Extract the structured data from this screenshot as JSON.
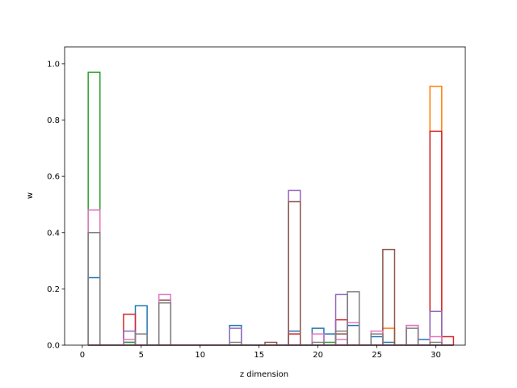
{
  "chart_data": {
    "type": "bar",
    "style": "step-outline histogram (unfilled bars)",
    "xlabel": "z dimension",
    "ylabel": "w",
    "xlim": [
      -1.5,
      32.5
    ],
    "ylim": [
      0,
      1.06
    ],
    "xticks": [
      0,
      5,
      10,
      15,
      20,
      25,
      30
    ],
    "yticks": [
      0.0,
      0.2,
      0.4,
      0.6,
      0.8,
      1.0
    ],
    "bin_width": 1,
    "legend": "none",
    "grid": false,
    "series": [
      {
        "color": "#1f77b4",
        "bars": [
          {
            "x": 1,
            "y": 0.24
          },
          {
            "x": 4,
            "y": 0.01
          },
          {
            "x": 5,
            "y": 0.14
          },
          {
            "x": 13,
            "y": 0.07
          },
          {
            "x": 18,
            "y": 0.05
          },
          {
            "x": 20,
            "y": 0.06
          },
          {
            "x": 21,
            "y": 0.04
          },
          {
            "x": 23,
            "y": 0.07
          },
          {
            "x": 25,
            "y": 0.03
          },
          {
            "x": 26,
            "y": 0.01
          },
          {
            "x": 29,
            "y": 0.02
          }
        ]
      },
      {
        "color": "#ff7f0e",
        "bars": [
          {
            "x": 26,
            "y": 0.06
          },
          {
            "x": 30,
            "y": 0.92
          }
        ]
      },
      {
        "color": "#2ca02c",
        "bars": [
          {
            "x": 1,
            "y": 0.97
          },
          {
            "x": 4,
            "y": 0.01
          },
          {
            "x": 21,
            "y": 0.01
          }
        ]
      },
      {
        "color": "#d62728",
        "bars": [
          {
            "x": 4,
            "y": 0.11
          },
          {
            "x": 18,
            "y": 0.04
          },
          {
            "x": 22,
            "y": 0.09
          },
          {
            "x": 30,
            "y": 0.76
          },
          {
            "x": 31,
            "y": 0.03
          }
        ]
      },
      {
        "color": "#9467bd",
        "bars": [
          {
            "x": 4,
            "y": 0.05
          },
          {
            "x": 13,
            "y": 0.06
          },
          {
            "x": 18,
            "y": 0.55
          },
          {
            "x": 22,
            "y": 0.18
          },
          {
            "x": 28,
            "y": 0.07
          },
          {
            "x": 30,
            "y": 0.12
          }
        ]
      },
      {
        "color": "#8c564b",
        "bars": [
          {
            "x": 7,
            "y": 0.16
          },
          {
            "x": 16,
            "y": 0.01
          },
          {
            "x": 18,
            "y": 0.51
          },
          {
            "x": 22,
            "y": 0.04
          },
          {
            "x": 26,
            "y": 0.34
          }
        ]
      },
      {
        "color": "#e377c2",
        "bars": [
          {
            "x": 1,
            "y": 0.48
          },
          {
            "x": 4,
            "y": 0.02
          },
          {
            "x": 7,
            "y": 0.18
          },
          {
            "x": 20,
            "y": 0.04
          },
          {
            "x": 22,
            "y": 0.02
          },
          {
            "x": 23,
            "y": 0.08
          },
          {
            "x": 25,
            "y": 0.05
          },
          {
            "x": 28,
            "y": 0.07
          },
          {
            "x": 30,
            "y": 0.03
          }
        ]
      },
      {
        "color": "#7f7f7f",
        "bars": [
          {
            "x": 1,
            "y": 0.4
          },
          {
            "x": 5,
            "y": 0.04
          },
          {
            "x": 7,
            "y": 0.15
          },
          {
            "x": 13,
            "y": 0.01
          },
          {
            "x": 20,
            "y": 0.01
          },
          {
            "x": 22,
            "y": 0.05
          },
          {
            "x": 23,
            "y": 0.19
          },
          {
            "x": 25,
            "y": 0.04
          },
          {
            "x": 28,
            "y": 0.06
          },
          {
            "x": 30,
            "y": 0.01
          }
        ]
      }
    ]
  }
}
